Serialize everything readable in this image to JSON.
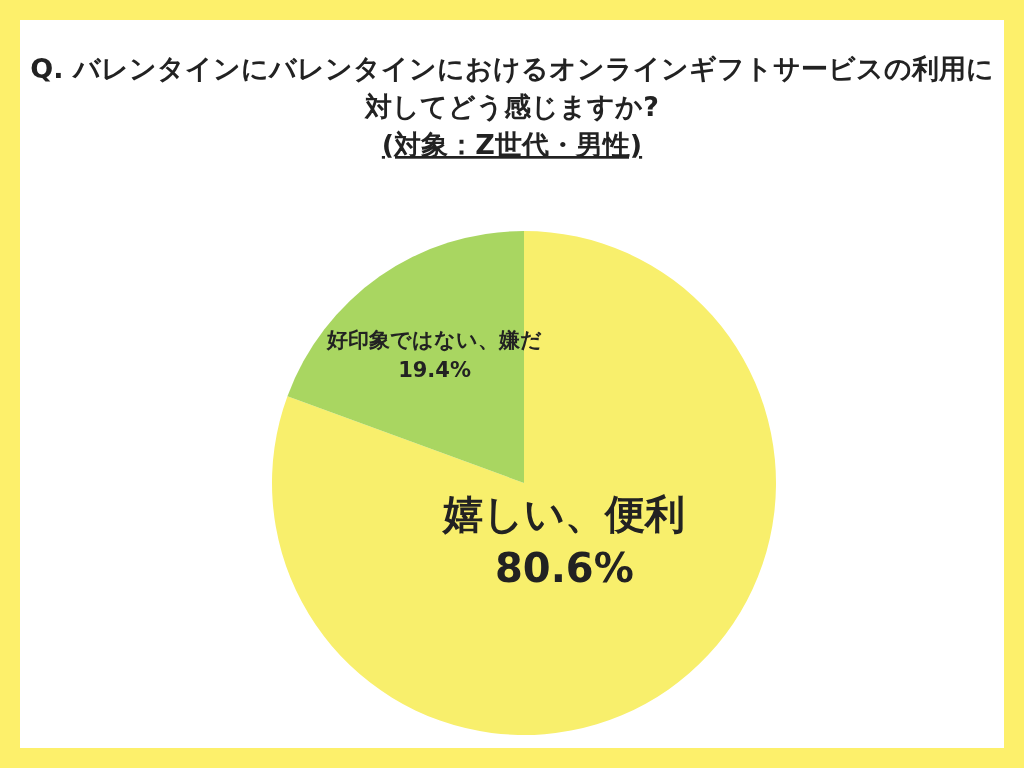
{
  "chart_data": {
    "type": "pie",
    "title": "Q. バレンタインにバレンタインにおけるオンラインギフトサービスの利用に対してどう感じますか?",
    "subtitle": "(対象：Z世代・男性)",
    "categories": [
      "嬉しい、便利",
      "好印象ではない、嫌だ"
    ],
    "values": [
      80.6,
      19.4
    ],
    "colors": [
      "#f8ef6c",
      "#a9d661"
    ],
    "value_labels": [
      "80.6%",
      "19.4%"
    ]
  }
}
